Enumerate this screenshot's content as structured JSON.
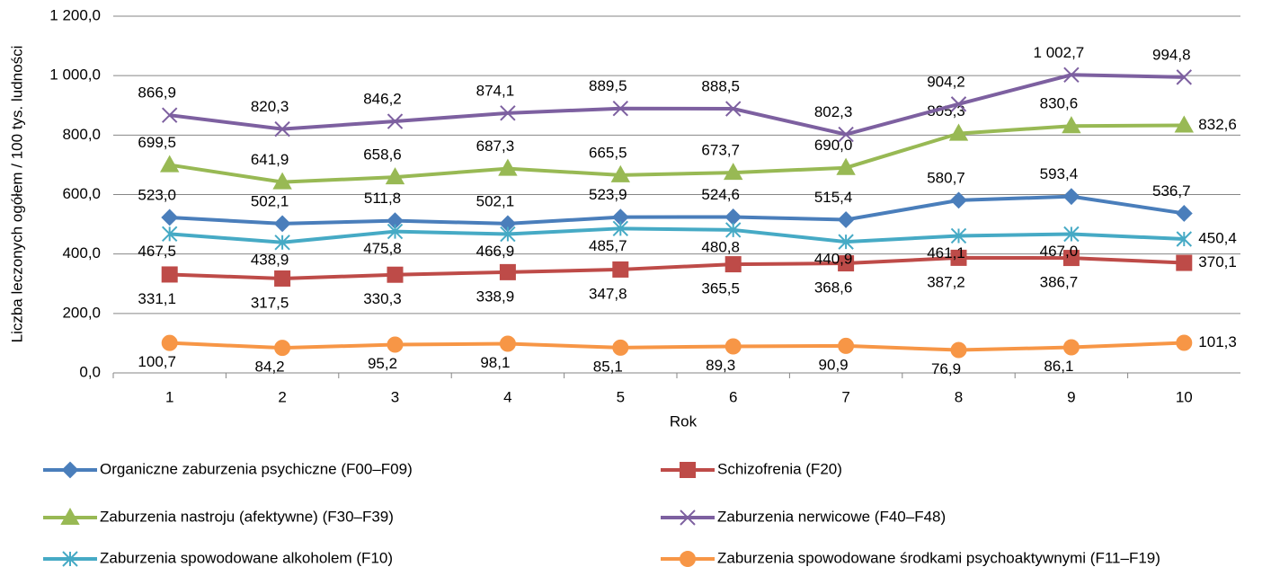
{
  "chart_data": {
    "type": "line",
    "x_label": "Rok",
    "y_label": "Liczba leczonych ogółem / 100 tys. ludności",
    "categories": [
      1,
      2,
      3,
      4,
      5,
      6,
      7,
      8,
      9,
      10
    ],
    "ylim": [
      0,
      1200
    ],
    "yticks": [
      {
        "value": 0,
        "label": "0,0"
      },
      {
        "value": 200,
        "label": "200,0"
      },
      {
        "value": 400,
        "label": "400,0"
      },
      {
        "value": 600,
        "label": "600,0"
      },
      {
        "value": 800,
        "label": "800,0"
      },
      {
        "value": 1000,
        "label": "1 000,0"
      },
      {
        "value": 1200,
        "label": "1 200,0"
      }
    ],
    "grid": true,
    "legend": "bottom",
    "series": [
      {
        "name": "Organiczne zaburzenia psychiczne (F00–F09)",
        "color": "#4a7ebb",
        "marker": "diamond",
        "values": [
          523.0,
          502.1,
          511.8,
          502.1,
          523.9,
          524.6,
          515.4,
          580.7,
          593.4,
          536.7
        ],
        "value_labels": [
          "523,0",
          "502,1",
          "511,8",
          "502,1",
          "523,9",
          "524,6",
          "515,4",
          "580,7",
          "593,4",
          "536,7"
        ]
      },
      {
        "name": "Schizofrenia (F20)",
        "color": "#be4b48",
        "marker": "square",
        "values": [
          331.1,
          317.5,
          330.3,
          338.9,
          347.8,
          365.5,
          368.6,
          387.2,
          386.7,
          370.1
        ],
        "value_labels": [
          "331,1",
          "317,5",
          "330,3",
          "338,9",
          "347,8",
          "365,5",
          "368,6",
          "387,2",
          "386,7",
          "370,1"
        ]
      },
      {
        "name": "Zaburzenia nastroju (afektywne) (F30–F39)",
        "color": "#98b954",
        "marker": "triangle",
        "values": [
          699.5,
          641.9,
          658.6,
          687.3,
          665.5,
          673.7,
          690.0,
          805.3,
          830.6,
          832.6
        ],
        "value_labels": [
          "699,5",
          "641,9",
          "658,6",
          "687,3",
          "665,5",
          "673,7",
          "690,0",
          "805,3",
          "830,6",
          "832,6"
        ]
      },
      {
        "name": "Zaburzenia nerwicowe (F40–F48)",
        "color": "#7d60a0",
        "marker": "x",
        "values": [
          866.9,
          820.3,
          846.2,
          874.1,
          889.5,
          888.5,
          802.3,
          904.2,
          1002.7,
          994.8
        ],
        "value_labels": [
          "866,9",
          "820,3",
          "846,2",
          "874,1",
          "889,5",
          "888,5",
          "802,3",
          "904,2",
          "1 002,7",
          "994,8"
        ]
      },
      {
        "name": "Zaburzenia spowodowane alkoholem (F10)",
        "color": "#46aac5",
        "marker": "star",
        "values": [
          467.5,
          438.9,
          475.8,
          466.9,
          485.7,
          480.8,
          440.9,
          461.1,
          467.0,
          450.4
        ],
        "value_labels": [
          "467,5",
          "438,9",
          "475,8",
          "466,9",
          "485,7",
          "480,8",
          "440,9",
          "461,1",
          "467,0",
          "450,4"
        ]
      },
      {
        "name": "Zaburzenia spowodowane środkami psychoaktywnymi (F11–F19)",
        "color": "#f79646",
        "marker": "circle",
        "values": [
          100.7,
          84.2,
          95.2,
          98.1,
          85.1,
          89.3,
          90.9,
          76.9,
          86.1,
          101.3
        ],
        "value_labels": [
          "100,7",
          "84,2",
          "95,2",
          "98,1",
          "85,1",
          "89,3",
          "90,9",
          "76,9",
          "86,1",
          "101,3"
        ]
      }
    ]
  }
}
